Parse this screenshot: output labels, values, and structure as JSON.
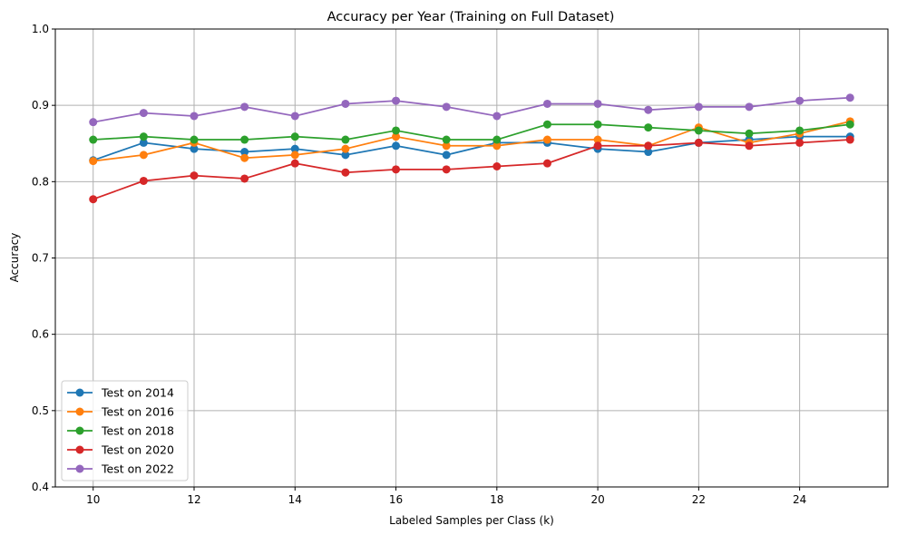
{
  "chart_data": {
    "type": "line",
    "title": "Accuracy per Year (Training on Full Dataset)",
    "xlabel": "Labeled Samples per Class (k)",
    "ylabel": "Accuracy",
    "xlim": [
      9.25,
      25.75
    ],
    "ylim": [
      0.4,
      1.0
    ],
    "xticks": [
      10,
      12,
      14,
      16,
      18,
      20,
      22,
      24
    ],
    "yticks": [
      0.4,
      0.5,
      0.6,
      0.7,
      0.8,
      0.9,
      1.0
    ],
    "xtick_labels": [
      "10",
      "12",
      "14",
      "16",
      "18",
      "20",
      "22",
      "24"
    ],
    "ytick_labels": [
      "0.4",
      "0.5",
      "0.6",
      "0.7",
      "0.8",
      "0.9",
      "1.0"
    ],
    "grid": true,
    "legend_position": "lower-left",
    "x": [
      10,
      11,
      12,
      13,
      14,
      15,
      16,
      17,
      18,
      19,
      20,
      21,
      22,
      23,
      24,
      25
    ],
    "series": [
      {
        "name": "Test on 2014",
        "color": "#1f77b4",
        "values": [
          0.828,
          0.851,
          0.843,
          0.839,
          0.843,
          0.835,
          0.847,
          0.835,
          0.851,
          0.851,
          0.843,
          0.839,
          0.851,
          0.855,
          0.859,
          0.859
        ]
      },
      {
        "name": "Test on 2016",
        "color": "#ff7f0e",
        "values": [
          0.827,
          0.835,
          0.851,
          0.831,
          0.835,
          0.843,
          0.859,
          0.847,
          0.847,
          0.855,
          0.855,
          0.847,
          0.871,
          0.851,
          0.863,
          0.879
        ]
      },
      {
        "name": "Test on 2018",
        "color": "#2ca02c",
        "values": [
          0.855,
          0.859,
          0.855,
          0.855,
          0.859,
          0.855,
          0.867,
          0.855,
          0.855,
          0.875,
          0.875,
          0.871,
          0.867,
          0.863,
          0.867,
          0.875
        ]
      },
      {
        "name": "Test on 2020",
        "color": "#d62728",
        "values": [
          0.777,
          0.801,
          0.808,
          0.804,
          0.824,
          0.812,
          0.816,
          0.816,
          0.82,
          0.824,
          0.847,
          0.847,
          0.851,
          0.847,
          0.851,
          0.855
        ]
      },
      {
        "name": "Test on 2022",
        "color": "#9467bd",
        "values": [
          0.878,
          0.89,
          0.886,
          0.898,
          0.886,
          0.902,
          0.906,
          0.898,
          0.886,
          0.902,
          0.902,
          0.894,
          0.898,
          0.898,
          0.906,
          0.91
        ]
      }
    ]
  }
}
